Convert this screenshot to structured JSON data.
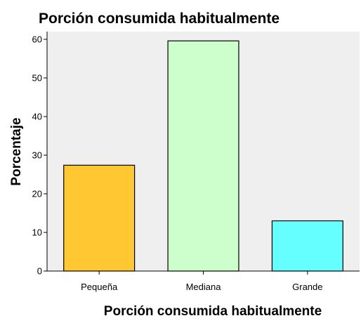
{
  "chart_data": {
    "type": "bar",
    "title": "Porción consumida habitualmente",
    "xlabel": "Porción consumida habitualmente",
    "ylabel": "Porcentaje",
    "categories": [
      "Pequeña",
      "Mediana",
      "Grande"
    ],
    "values": [
      27.4,
      59.6,
      13.0
    ],
    "colors": [
      "#FFC832",
      "#CCFFCC",
      "#66FFFF"
    ],
    "ylim": [
      0,
      62
    ],
    "yticks": [
      0,
      10,
      20,
      30,
      40,
      50,
      60
    ],
    "plot_background": "#EFEFEF",
    "grid": false,
    "legend": "none"
  }
}
